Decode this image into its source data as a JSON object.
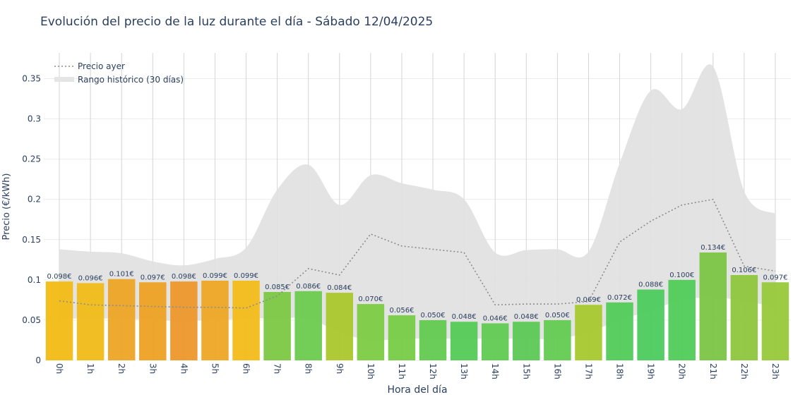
{
  "chart_data": {
    "type": "bar",
    "title": "Evolución del precio de la luz durante el día - Sábado 12/04/2025",
    "xlabel": "Hora del día",
    "ylabel": "Precio (€/kWh)",
    "ylim": [
      0,
      0.38
    ],
    "yticks": [
      {
        "value": 0,
        "label": "0"
      },
      {
        "value": 0.05,
        "label": "0.05"
      },
      {
        "value": 0.1,
        "label": "0.1"
      },
      {
        "value": 0.15,
        "label": "0.15"
      },
      {
        "value": 0.2,
        "label": "0.2"
      },
      {
        "value": 0.25,
        "label": "0.25"
      },
      {
        "value": 0.3,
        "label": "0.3"
      },
      {
        "value": 0.35,
        "label": "0.35"
      }
    ],
    "grid": true,
    "legend_position": "top-left",
    "categories": [
      "0h",
      "1h",
      "2h",
      "3h",
      "4h",
      "5h",
      "6h",
      "7h",
      "8h",
      "9h",
      "10h",
      "11h",
      "12h",
      "13h",
      "14h",
      "15h",
      "16h",
      "17h",
      "18h",
      "19h",
      "20h",
      "21h",
      "22h",
      "23h"
    ],
    "values": [
      0.098,
      0.096,
      0.101,
      0.097,
      0.098,
      0.099,
      0.099,
      0.085,
      0.086,
      0.084,
      0.07,
      0.056,
      0.05,
      0.048,
      0.046,
      0.048,
      0.05,
      0.069,
      0.072,
      0.088,
      0.1,
      0.134,
      0.106,
      0.097
    ],
    "value_labels": [
      "0.098€",
      "0.096€",
      "0.101€",
      "0.097€",
      "0.098€",
      "0.099€",
      "0.099€",
      "0.085€",
      "0.086€",
      "0.084€",
      "0.070€",
      "0.056€",
      "0.050€",
      "0.048€",
      "0.046€",
      "0.048€",
      "0.050€",
      "0.069€",
      "0.072€",
      "0.088€",
      "0.100€",
      "0.134€",
      "0.106€",
      "0.097€"
    ],
    "bar_colors": [
      "#F2BB14",
      "#F0BC18",
      "#EDA525",
      "#EDA124",
      "#ED972B",
      "#EDA625",
      "#F2BC18",
      "#7CC843",
      "#6CCB4F",
      "#AAC72C",
      "#7DCB44",
      "#77CB46",
      "#62CA51",
      "#55CA57",
      "#61CA52",
      "#5CC955",
      "#63CA51",
      "#A8C82D",
      "#52CB58",
      "#4BCB5D",
      "#50CB59",
      "#7BC444",
      "#8DC63D",
      "#97C83A"
    ],
    "series": [
      {
        "name": "Precio ayer",
        "style": "dotted",
        "color": "#8c8c8c",
        "values": [
          0.074,
          0.069,
          0.068,
          0.067,
          0.066,
          0.066,
          0.065,
          0.08,
          0.114,
          0.106,
          0.157,
          0.142,
          0.138,
          0.134,
          0.069,
          0.07,
          0.07,
          0.073,
          0.147,
          0.173,
          0.193,
          0.2,
          0.117,
          0.111
        ]
      },
      {
        "name": "Rango histórico (30 días)",
        "style": "band",
        "color": "#e5e5e5",
        "upper": [
          0.138,
          0.135,
          0.133,
          0.123,
          0.118,
          0.126,
          0.14,
          0.212,
          0.243,
          0.193,
          0.23,
          0.22,
          0.212,
          0.2,
          0.134,
          0.137,
          0.138,
          0.135,
          0.245,
          0.335,
          0.312,
          0.365,
          0.21,
          0.182
        ],
        "lower": [
          0.052,
          0.052,
          0.052,
          0.05,
          0.049,
          0.05,
          0.052,
          0.052,
          0.052,
          0.035,
          0.025,
          0.027,
          0.027,
          0.027,
          0.027,
          0.027,
          0.027,
          0.035,
          0.05,
          0.062,
          0.075,
          0.078,
          0.074,
          0.066
        ]
      }
    ]
  }
}
